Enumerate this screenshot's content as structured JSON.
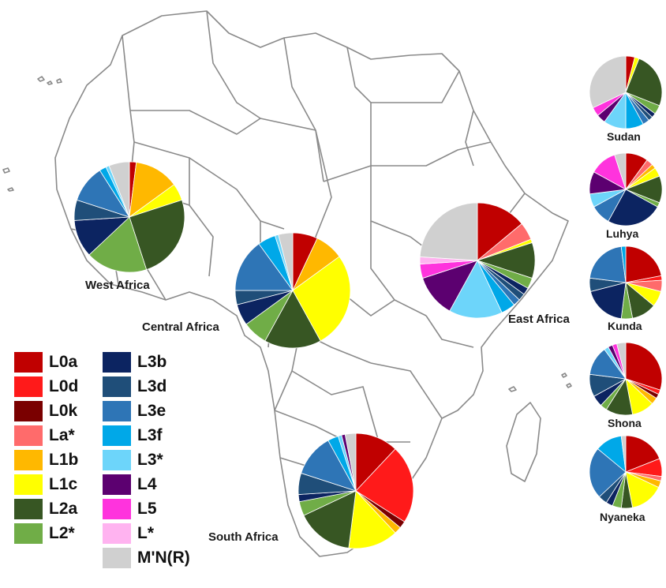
{
  "colors": {
    "L0a": "#c00000",
    "L0d": "#ff1a1a",
    "L0k": "#7a0000",
    "La*": "#ff6b6b",
    "L1b": "#ffb800",
    "L1c": "#ffff00",
    "L2a": "#375623",
    "L2*": "#70ad47",
    "L3b": "#0c2461",
    "L3d": "#1f4e79",
    "L3e": "#2e75b6",
    "L3f": "#00a8e8",
    "L3*": "#6dd5fa",
    "L4": "#5c0070",
    "L5": "#ff33dd",
    "L*": "#ffb3f0",
    "M'N(R)": "#d0d0d0"
  },
  "legend": {
    "col1": [
      "L0a",
      "L0d",
      "L0k",
      "La*",
      "L1b",
      "L1c",
      "L2a",
      "L2*"
    ],
    "col2": [
      "L3b",
      "L3d",
      "L3e",
      "L3f",
      "L3*",
      "L4",
      "L5",
      "L*",
      "M'N(R)"
    ]
  },
  "regions": {
    "west": "West Africa",
    "central": "Central Africa",
    "east": "East Africa",
    "south": "South Africa"
  },
  "populations": {
    "sudan": "Sudan",
    "luhya": "Luhya",
    "kunda": "Kunda",
    "shona": "Shona",
    "nyaneka": "Nyaneka"
  },
  "chart_data": [
    {
      "type": "pie",
      "title": "West Africa",
      "slices": [
        {
          "label": "L0a",
          "value": 2
        },
        {
          "label": "L1b",
          "value": 13
        },
        {
          "label": "L1c",
          "value": 5
        },
        {
          "label": "L2a",
          "value": 25
        },
        {
          "label": "L2*",
          "value": 18
        },
        {
          "label": "L3b",
          "value": 11
        },
        {
          "label": "L3d",
          "value": 6
        },
        {
          "label": "L3e",
          "value": 11
        },
        {
          "label": "L3f",
          "value": 2
        },
        {
          "label": "L3*",
          "value": 1
        },
        {
          "label": "M'N(R)",
          "value": 6
        }
      ]
    },
    {
      "type": "pie",
      "title": "Central Africa",
      "slices": [
        {
          "label": "L0a",
          "value": 7
        },
        {
          "label": "L1b",
          "value": 8
        },
        {
          "label": "L1c",
          "value": 27
        },
        {
          "label": "L2a",
          "value": 16
        },
        {
          "label": "L2*",
          "value": 7
        },
        {
          "label": "L3b",
          "value": 6
        },
        {
          "label": "L3d",
          "value": 4
        },
        {
          "label": "L3e",
          "value": 15
        },
        {
          "label": "L3f",
          "value": 5
        },
        {
          "label": "L3*",
          "value": 1
        },
        {
          "label": "M'N(R)",
          "value": 4
        }
      ]
    },
    {
      "type": "pie",
      "title": "East Africa",
      "slices": [
        {
          "label": "L0a",
          "value": 14
        },
        {
          "label": "La*",
          "value": 5
        },
        {
          "label": "L1c",
          "value": 1
        },
        {
          "label": "L2a",
          "value": 10
        },
        {
          "label": "L2*",
          "value": 3
        },
        {
          "label": "L3b",
          "value": 2
        },
        {
          "label": "L3d",
          "value": 2
        },
        {
          "label": "L3e",
          "value": 2
        },
        {
          "label": "L3f",
          "value": 4
        },
        {
          "label": "L3*",
          "value": 15
        },
        {
          "label": "L4",
          "value": 12
        },
        {
          "label": "L5",
          "value": 4
        },
        {
          "label": "L*",
          "value": 2
        },
        {
          "label": "M'N(R)",
          "value": 24
        }
      ]
    },
    {
      "type": "pie",
      "title": "South Africa",
      "slices": [
        {
          "label": "L0a",
          "value": 12
        },
        {
          "label": "L0d",
          "value": 22
        },
        {
          "label": "L0k",
          "value": 2
        },
        {
          "label": "L1b",
          "value": 2
        },
        {
          "label": "L1c",
          "value": 14
        },
        {
          "label": "L2a",
          "value": 16
        },
        {
          "label": "L2*",
          "value": 4
        },
        {
          "label": "L3b",
          "value": 2
        },
        {
          "label": "L3d",
          "value": 6
        },
        {
          "label": "L3e",
          "value": 12
        },
        {
          "label": "L3f",
          "value": 3
        },
        {
          "label": "L3*",
          "value": 1
        },
        {
          "label": "L4",
          "value": 1
        },
        {
          "label": "M'N(R)",
          "value": 3
        }
      ]
    },
    {
      "type": "pie",
      "title": "Sudan",
      "slices": [
        {
          "label": "L0a",
          "value": 4
        },
        {
          "label": "L1c",
          "value": 2
        },
        {
          "label": "L2a",
          "value": 25
        },
        {
          "label": "L2*",
          "value": 4
        },
        {
          "label": "L3b",
          "value": 2
        },
        {
          "label": "L3d",
          "value": 2
        },
        {
          "label": "L3e",
          "value": 3
        },
        {
          "label": "L3f",
          "value": 8
        },
        {
          "label": "L3*",
          "value": 10
        },
        {
          "label": "L4",
          "value": 4
        },
        {
          "label": "L5",
          "value": 4
        },
        {
          "label": "M'N(R)",
          "value": 32
        }
      ]
    },
    {
      "type": "pie",
      "title": "Luhya",
      "slices": [
        {
          "label": "L0a",
          "value": 10
        },
        {
          "label": "La*",
          "value": 3
        },
        {
          "label": "L1b",
          "value": 2
        },
        {
          "label": "L1c",
          "value": 4
        },
        {
          "label": "L2a",
          "value": 12
        },
        {
          "label": "L2*",
          "value": 2
        },
        {
          "label": "L3b",
          "value": 25
        },
        {
          "label": "L3e",
          "value": 9
        },
        {
          "label": "L3*",
          "value": 6
        },
        {
          "label": "L4",
          "value": 10
        },
        {
          "label": "L5",
          "value": 12
        },
        {
          "label": "M'N(R)",
          "value": 5
        }
      ]
    },
    {
      "type": "pie",
      "title": "Kunda",
      "slices": [
        {
          "label": "L0a",
          "value": 22
        },
        {
          "label": "L0d",
          "value": 2
        },
        {
          "label": "La*",
          "value": 5
        },
        {
          "label": "L1c",
          "value": 7
        },
        {
          "label": "L2a",
          "value": 11
        },
        {
          "label": "L2*",
          "value": 5
        },
        {
          "label": "L3b",
          "value": 19
        },
        {
          "label": "L3d",
          "value": 6
        },
        {
          "label": "L3e",
          "value": 21
        },
        {
          "label": "L3f",
          "value": 2
        }
      ]
    },
    {
      "type": "pie",
      "title": "Shona",
      "slices": [
        {
          "label": "L0a",
          "value": 30
        },
        {
          "label": "L0d",
          "value": 2
        },
        {
          "label": "L0k",
          "value": 2
        },
        {
          "label": "L1b",
          "value": 3
        },
        {
          "label": "L1c",
          "value": 10
        },
        {
          "label": "L2a",
          "value": 12
        },
        {
          "label": "L2*",
          "value": 3
        },
        {
          "label": "L3b",
          "value": 5
        },
        {
          "label": "L3d",
          "value": 10
        },
        {
          "label": "L3e",
          "value": 13
        },
        {
          "label": "L3*",
          "value": 2
        },
        {
          "label": "L4",
          "value": 2
        },
        {
          "label": "L5",
          "value": 2
        },
        {
          "label": "M'N(R)",
          "value": 4
        }
      ]
    },
    {
      "type": "pie",
      "title": "Nyaneka",
      "slices": [
        {
          "label": "L0a",
          "value": 19
        },
        {
          "label": "L0d",
          "value": 8
        },
        {
          "label": "La*",
          "value": 2
        },
        {
          "label": "L1b",
          "value": 3
        },
        {
          "label": "L1c",
          "value": 15
        },
        {
          "label": "L2a",
          "value": 5
        },
        {
          "label": "L2*",
          "value": 4
        },
        {
          "label": "L3b",
          "value": 3
        },
        {
          "label": "L3d",
          "value": 4
        },
        {
          "label": "L3e",
          "value": 23
        },
        {
          "label": "L3f",
          "value": 12
        },
        {
          "label": "M'N(R)",
          "value": 2
        }
      ]
    }
  ]
}
